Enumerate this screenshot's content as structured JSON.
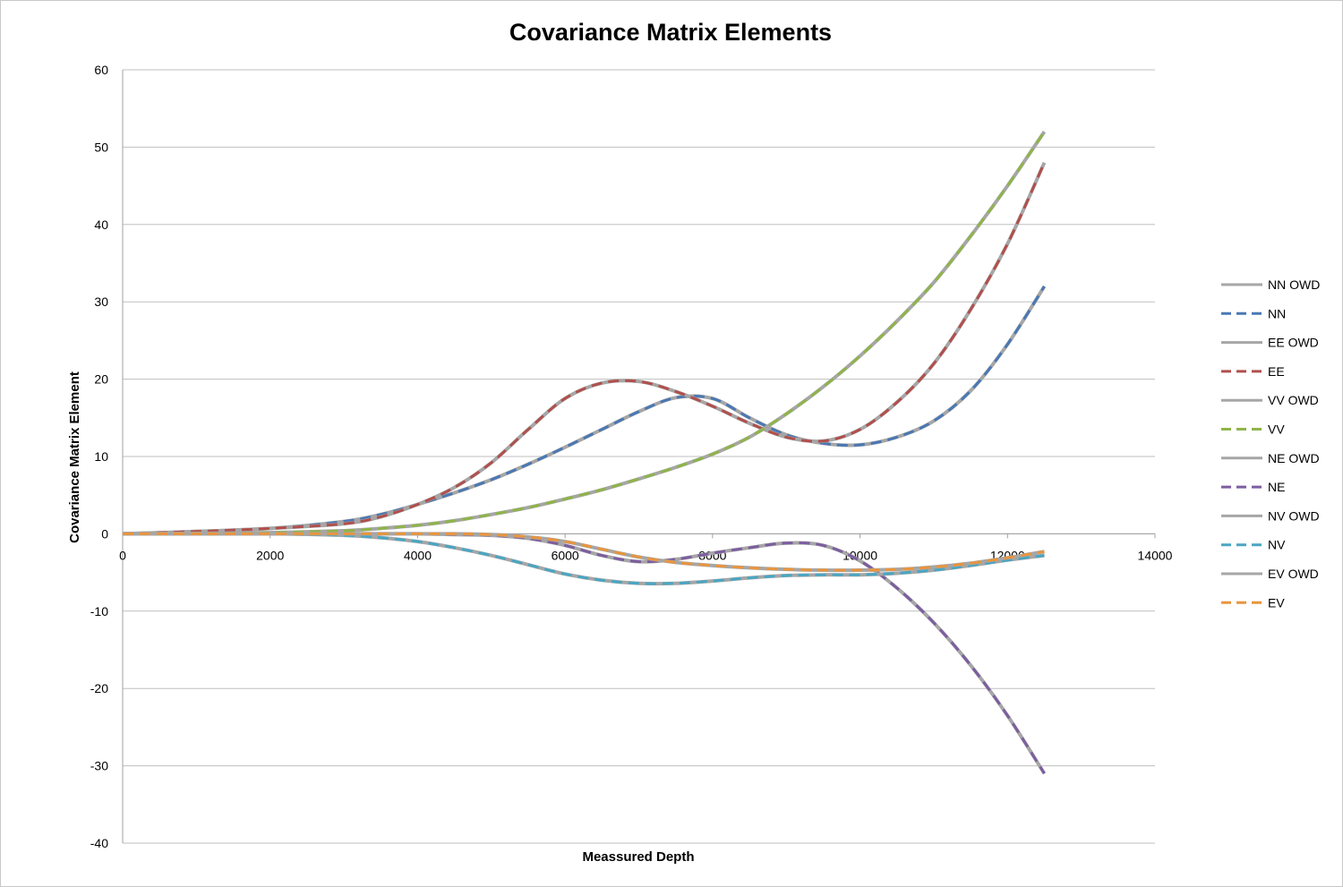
{
  "chart_data": {
    "type": "line",
    "title": "Covariance Matrix Elements",
    "xlabel": "Meassured Depth",
    "ylabel": "Covariance Matrix Element",
    "xlim": [
      0,
      14000
    ],
    "ylim": [
      -40,
      60
    ],
    "x_ticks": [
      "0",
      "2000",
      "4000",
      "6000",
      "8000",
      "10000",
      "12000",
      "14000"
    ],
    "y_ticks": [
      "60",
      "50",
      "40",
      "30",
      "20",
      "10",
      "0",
      "-10",
      "-20",
      "-30",
      "-40"
    ],
    "grid": true,
    "legend_position": "right",
    "x": [
      0,
      1000,
      2000,
      3000,
      3500,
      4000,
      4500,
      5000,
      5500,
      6000,
      6500,
      7000,
      7500,
      8000,
      8500,
      9000,
      9500,
      10000,
      10500,
      11000,
      11500,
      12000,
      12500
    ],
    "series": [
      {
        "name": "NN OWD",
        "color": "#a6a6a6",
        "style": "solid",
        "values": [
          0,
          0.3,
          0.7,
          1.6,
          2.5,
          3.8,
          5.3,
          7.0,
          9.0,
          11.2,
          13.5,
          15.8,
          17.6,
          17.5,
          15.0,
          12.8,
          11.7,
          11.5,
          12.5,
          14.6,
          18.5,
          24.5,
          32.0
        ]
      },
      {
        "name": "NN",
        "color": "#4a78b4",
        "style": "dashed",
        "values": [
          0,
          0.3,
          0.7,
          1.6,
          2.5,
          3.8,
          5.3,
          7.0,
          9.0,
          11.2,
          13.5,
          15.8,
          17.6,
          17.5,
          15.0,
          12.8,
          11.7,
          11.5,
          12.5,
          14.6,
          18.5,
          24.5,
          32.0
        ]
      },
      {
        "name": "EE OWD",
        "color": "#a6a6a6",
        "style": "solid",
        "values": [
          0,
          0.3,
          0.7,
          1.3,
          2.2,
          3.8,
          6.0,
          9.2,
          13.5,
          17.5,
          19.5,
          19.7,
          18.4,
          16.5,
          14.3,
          12.5,
          12.0,
          13.5,
          17.0,
          22.0,
          29.0,
          37.5,
          48.0
        ]
      },
      {
        "name": "EE",
        "color": "#b0504d",
        "style": "dashed",
        "values": [
          0,
          0.3,
          0.7,
          1.3,
          2.2,
          3.8,
          6.0,
          9.2,
          13.5,
          17.5,
          19.5,
          19.7,
          18.4,
          16.5,
          14.3,
          12.5,
          12.0,
          13.5,
          17.0,
          22.0,
          29.0,
          37.5,
          48.0
        ]
      },
      {
        "name": "VV OWD",
        "color": "#a6a6a6",
        "style": "solid",
        "values": [
          0,
          0.05,
          0.15,
          0.4,
          0.7,
          1.1,
          1.7,
          2.5,
          3.4,
          4.5,
          5.7,
          7.1,
          8.6,
          10.3,
          12.5,
          15.5,
          19.0,
          23.0,
          27.5,
          32.5,
          38.5,
          45.0,
          52.0
        ]
      },
      {
        "name": "VV",
        "color": "#8fb44a",
        "style": "dashed",
        "values": [
          0,
          0.05,
          0.15,
          0.4,
          0.7,
          1.1,
          1.7,
          2.5,
          3.4,
          4.5,
          5.7,
          7.1,
          8.6,
          10.3,
          12.5,
          15.5,
          19.0,
          23.0,
          27.5,
          32.5,
          38.5,
          45.0,
          52.0
        ]
      },
      {
        "name": "NE OWD",
        "color": "#a6a6a6",
        "style": "solid",
        "values": [
          0,
          0,
          0,
          0,
          0,
          0,
          -0.1,
          -0.2,
          -0.6,
          -1.5,
          -2.8,
          -3.6,
          -3.3,
          -2.5,
          -1.8,
          -1.2,
          -1.5,
          -3.5,
          -7.0,
          -11.5,
          -17.0,
          -23.5,
          -31.0
        ]
      },
      {
        "name": "NE",
        "color": "#7c5ea0",
        "style": "dashed",
        "values": [
          0,
          0,
          0,
          0,
          0,
          0,
          -0.1,
          -0.2,
          -0.6,
          -1.5,
          -2.8,
          -3.6,
          -3.3,
          -2.5,
          -1.8,
          -1.2,
          -1.5,
          -3.5,
          -7.0,
          -11.5,
          -17.0,
          -23.5,
          -31.0
        ]
      },
      {
        "name": "NV OWD",
        "color": "#a6a6a6",
        "style": "solid",
        "values": [
          0,
          0,
          0,
          -0.2,
          -0.5,
          -1.0,
          -1.8,
          -2.8,
          -4.0,
          -5.2,
          -6.0,
          -6.4,
          -6.4,
          -6.1,
          -5.7,
          -5.4,
          -5.3,
          -5.3,
          -5.1,
          -4.7,
          -4.1,
          -3.4,
          -2.8
        ]
      },
      {
        "name": "NV",
        "color": "#4aa6c2",
        "style": "dashed",
        "values": [
          0,
          0,
          0,
          -0.2,
          -0.5,
          -1.0,
          -1.8,
          -2.8,
          -4.0,
          -5.2,
          -6.0,
          -6.4,
          -6.4,
          -6.1,
          -5.7,
          -5.4,
          -5.3,
          -5.3,
          -5.1,
          -4.7,
          -4.1,
          -3.4,
          -2.8
        ]
      },
      {
        "name": "EV OWD",
        "color": "#a6a6a6",
        "style": "solid",
        "values": [
          0,
          0,
          0,
          0,
          0,
          0,
          0,
          -0.1,
          -0.4,
          -1.0,
          -2.0,
          -3.0,
          -3.7,
          -4.1,
          -4.4,
          -4.6,
          -4.7,
          -4.7,
          -4.6,
          -4.3,
          -3.8,
          -3.1,
          -2.3
        ]
      },
      {
        "name": "EV",
        "color": "#e8953f",
        "style": "dashed",
        "values": [
          0,
          0,
          0,
          0,
          0,
          0,
          0,
          -0.1,
          -0.4,
          -1.0,
          -2.0,
          -3.0,
          -3.7,
          -4.1,
          -4.4,
          -4.6,
          -4.7,
          -4.7,
          -4.6,
          -4.3,
          -3.8,
          -3.1,
          -2.3
        ]
      }
    ]
  }
}
